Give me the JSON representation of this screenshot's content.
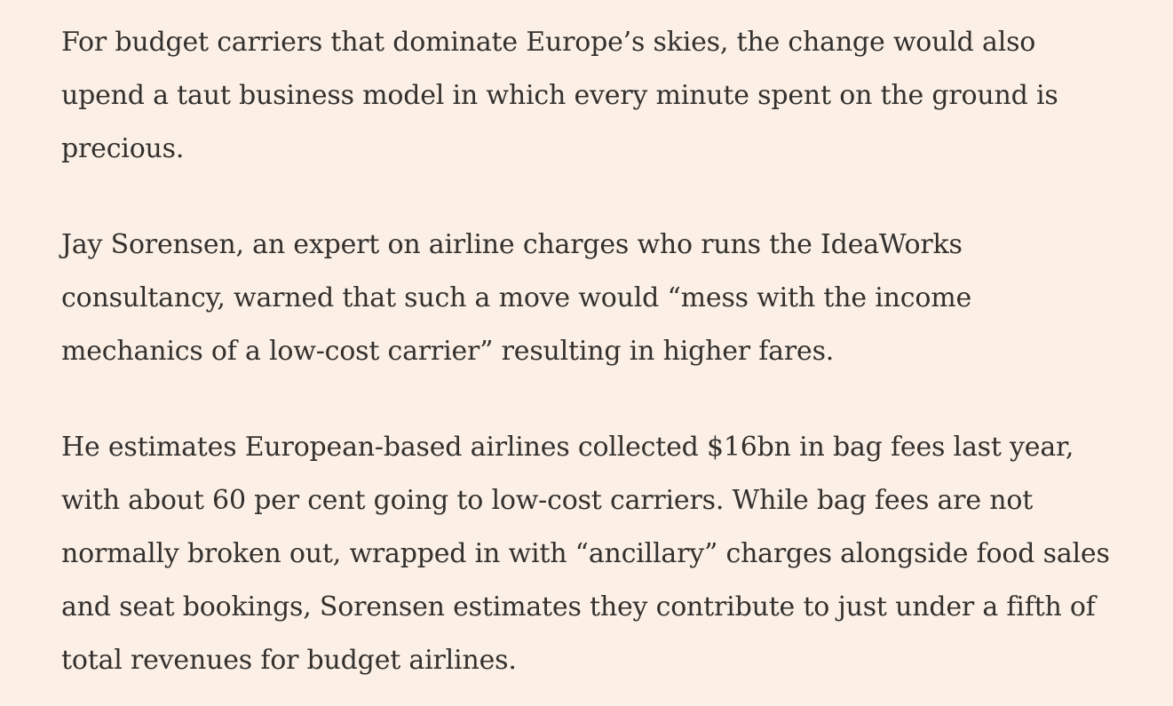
{
  "article": {
    "paragraphs": [
      {
        "lines": [
          "For budget carriers that dominate Europe’s skies, the change would also",
          "upend a taut business model in which every minute spent on the ground is",
          "precious."
        ]
      },
      {
        "lines": [
          "Jay Sorensen, an expert on airline charges who runs the IdeaWorks",
          "consultancy, warned that such a move would “mess with the income",
          "mechanics of a low-cost carrier” resulting in higher fares."
        ]
      },
      {
        "lines": [
          "He estimates European-based airlines collected $16bn in bag fees last year,",
          "with about 60 per cent going to low-cost carriers. While bag fees are not",
          "normally broken out, wrapped in with “ancillary” charges alongside food sales",
          "and seat bookings, Sorensen estimates they contribute to just under a fifth of",
          "total revenues for budget airlines."
        ]
      }
    ]
  },
  "colors": {
    "background": "#fcf0e6",
    "text": "#33302e"
  }
}
